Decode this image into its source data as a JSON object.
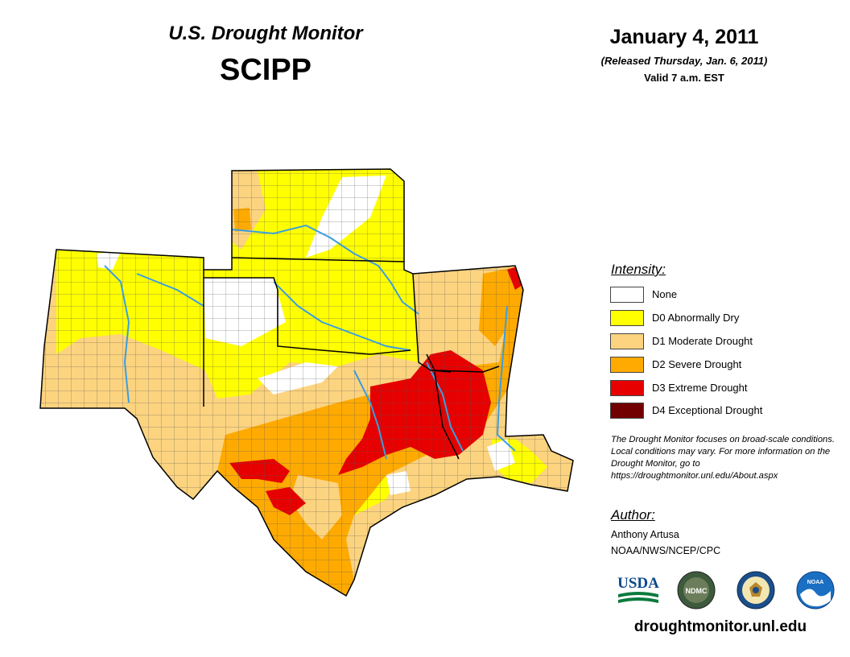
{
  "header": {
    "title": "U.S. Drought Monitor",
    "region": "SCIPP",
    "date": "January 4, 2011",
    "released": "(Released Thursday, Jan. 6, 2011)",
    "valid": "Valid 7 a.m. EST"
  },
  "legend": {
    "title": "Intensity:",
    "items": [
      {
        "label": "None",
        "color": "#ffffff"
      },
      {
        "label": "D0 Abnormally Dry",
        "color": "#ffff00"
      },
      {
        "label": "D1 Moderate Drought",
        "color": "#fcd37f"
      },
      {
        "label": "D2 Severe Drought",
        "color": "#ffaa00"
      },
      {
        "label": "D3 Extreme Drought",
        "color": "#e60000"
      },
      {
        "label": "D4 Exceptional Drought",
        "color": "#730000"
      }
    ]
  },
  "note": "The Drought Monitor focuses on broad-scale conditions. Local conditions may vary. For more information on the Drought Monitor, go to https://droughtmonitor.unl.edu/About.aspx",
  "author": {
    "title": "Author:",
    "name": "Anthony Artusa",
    "org": "NOAA/NWS/NCEP/CPC"
  },
  "logos": {
    "usda": "USDA",
    "ndmc": "NDMC",
    "noaa": "NOAA"
  },
  "website": "droughtmonitor.unl.edu",
  "colors": {
    "river": "#3a9ee0",
    "border": "#000000",
    "county": "#555555"
  }
}
